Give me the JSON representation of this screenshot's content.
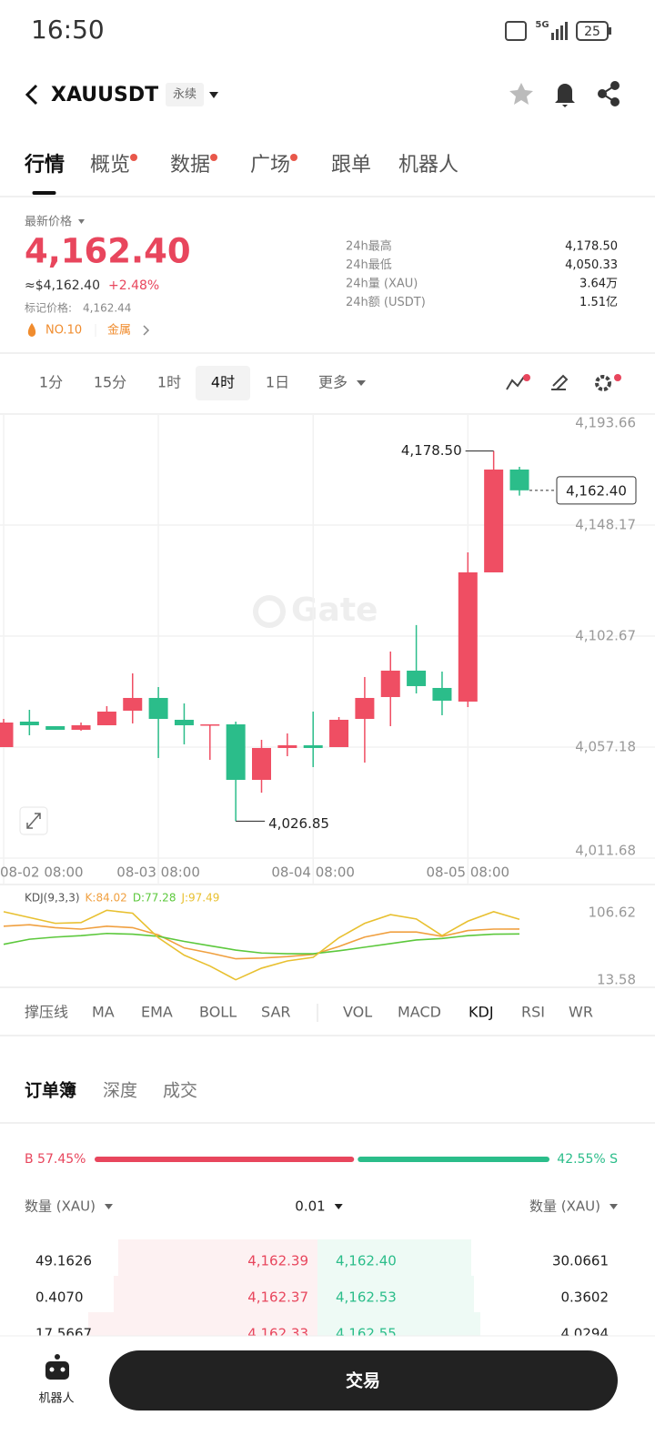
{
  "status_bar": {
    "time": "16:50",
    "network": "5G",
    "battery": "25"
  },
  "header": {
    "symbol": "XAUUSDT",
    "tag": "永续"
  },
  "tabs": {
    "items": [
      "行情",
      "概览",
      "数据",
      "广场",
      "跟单",
      "机器人"
    ],
    "active": 0,
    "dots": [
      1,
      2,
      3
    ]
  },
  "price": {
    "label": "最新价格",
    "last": "4,162.40",
    "usd": "≈$4,162.40",
    "change": "+2.48%",
    "mark_label": "标记价格:",
    "mark": "4,162.44",
    "rank": "NO.10",
    "sector": "金属"
  },
  "stats": [
    [
      "24h最高",
      "4,178.50"
    ],
    [
      "24h最低",
      "4,050.33"
    ],
    [
      "24h量 (XAU)",
      "3.64万"
    ],
    [
      "24h额 (USDT)",
      "1.51亿"
    ]
  ],
  "intervals": {
    "items": [
      "1分",
      "15分",
      "1时",
      "4时",
      "1日",
      "更多"
    ],
    "active": 3
  },
  "watermark": "Gate",
  "chart_data": [
    {
      "type": "candlestick",
      "categories": [
        "08-02 08:00",
        null,
        null,
        null,
        null,
        null,
        "08-03 08:00",
        null,
        null,
        null,
        null,
        null,
        "08-04 08:00",
        null,
        null,
        null,
        null,
        null,
        "08-05 08:00",
        null,
        null
      ],
      "open": [
        4057.18,
        4067.62,
        4065.76,
        4064.27,
        4066.13,
        4072.1,
        4077.32,
        4068.37,
        4066.13,
        4066.5,
        4043.76,
        4056.81,
        4057.93,
        4057.18,
        4068.74,
        4077.69,
        4088.51,
        4081.42,
        4075.83,
        4128.78,
        4170.92
      ],
      "high": [
        4068.74,
        4072.47,
        4065.76,
        4067.25,
        4073.96,
        4087.39,
        4081.79,
        4075.08,
        4066.5,
        4067.62,
        4060.17,
        4062.78,
        4071.73,
        4069.49,
        4085.9,
        4096.34,
        4107.19,
        4088.13,
        4136.98,
        4178.5,
        4172.04
      ],
      "low": [
        4057.18,
        4062.03,
        4064.27,
        4063.89,
        4066.13,
        4066.88,
        4052.71,
        4058.3,
        4051.96,
        4026.85,
        4038.49,
        4053.45,
        4048.98,
        4057.18,
        4050.84,
        4065.76,
        4079.18,
        4070.23,
        4073.59,
        4128.78,
        4160.24
      ],
      "close": [
        4067.25,
        4066.13,
        4064.27,
        4066.13,
        4071.73,
        4077.32,
        4068.74,
        4066.13,
        4066.5,
        4043.76,
        4056.81,
        4057.93,
        4056.81,
        4068.37,
        4077.32,
        4088.51,
        4082.17,
        4076.2,
        4128.78,
        4170.92,
        4162.4
      ],
      "up_color": "#ef4e63",
      "down_color": "#2bbd8a",
      "ylim": [
        4011.68,
        4193.66
      ],
      "yticks": [
        {
          "value": 4011.68,
          "label": "4,011.68"
        },
        {
          "value": 4057.18,
          "label": "4,057.18"
        },
        {
          "value": 4102.67,
          "label": "4,102.67"
        },
        {
          "value": 4148.17,
          "label": "4,148.17"
        },
        {
          "value": 4193.66,
          "label": "4,193.66"
        }
      ],
      "grid": true,
      "annotations": [
        {
          "value": 4178.5,
          "label": "4,178.50"
        },
        {
          "value": 4026.85,
          "label": "4,026.85"
        },
        {
          "value": 4162.4,
          "label": "4,162.40"
        }
      ]
    },
    {
      "type": "line",
      "title": "KDJ(9,3,3)",
      "series": [
        {
          "name": "K:84.02",
          "color": "#f0a040",
          "values": [
            88,
            90,
            86,
            84,
            88,
            86,
            76,
            58,
            51,
            43,
            44,
            46,
            49,
            60,
            73,
            80,
            80,
            74,
            82,
            84,
            84.02
          ]
        },
        {
          "name": "D:77.28",
          "color": "#5cc83c",
          "values": [
            63,
            70,
            73,
            75,
            78,
            77,
            74,
            67,
            61,
            55,
            51,
            50,
            50,
            54,
            59,
            64,
            69,
            71,
            75,
            77,
            77.28
          ]
        },
        {
          "name": "J:97.49",
          "color": "#e8c030",
          "values": [
            108,
            100,
            92,
            93,
            110,
            106,
            72,
            48,
            33,
            14,
            30,
            40,
            45,
            72,
            92,
            104,
            98,
            75,
            95,
            108,
            97.49
          ]
        }
      ],
      "ylim": [
        13.58,
        106.62
      ],
      "yticks": [
        13.58,
        106.62
      ]
    }
  ],
  "indicators": {
    "items": [
      "撑压线",
      "MA",
      "EMA",
      "BOLL",
      "SAR",
      "VOL",
      "MACD",
      "KDJ",
      "RSI",
      "WR"
    ],
    "active": 7
  },
  "orderbook": {
    "tabs": [
      "订单簿",
      "深度",
      "成交"
    ],
    "active": 0,
    "ratio": {
      "buy": {
        "value": 57.45,
        "label": "B 57.45%"
      },
      "sell": {
        "value": 42.55,
        "label": "42.55% S"
      }
    },
    "columns": [
      "数量 (XAU)",
      "0.01",
      "数量 (XAU)"
    ],
    "rows": [
      [
        "49.1626",
        "4,162.39",
        "4,162.40",
        "30.0661"
      ],
      [
        "0.4070",
        "4,162.37",
        "4,162.53",
        "0.3602"
      ],
      [
        "17.5667",
        "4,162.33",
        "4,162.55",
        "4.0294"
      ]
    ]
  },
  "bottom": {
    "robot": "机器人",
    "trade": "交易"
  }
}
